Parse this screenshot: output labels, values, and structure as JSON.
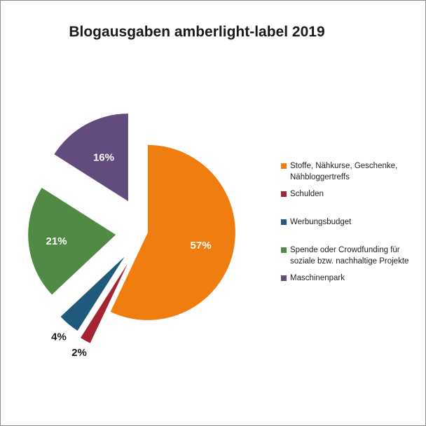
{
  "chart_data": {
    "type": "pie",
    "title": "Blogausgaben amberlight-label 2019",
    "exploded": true,
    "legend_position": "right",
    "slices": [
      {
        "label": "Stoffe, Nähkurse, Geschenke, Nähbloggertreffs",
        "value": 57,
        "value_label": "57%",
        "color": "#ef7d0f"
      },
      {
        "label": "Schulden",
        "value": 2,
        "value_label": "2%",
        "color": "#a42433"
      },
      {
        "label": "Werbungsbudget",
        "value": 4,
        "value_label": "4%",
        "color": "#1f5a7d"
      },
      {
        "label": "Spende oder Crowdfunding für soziale bzw. nachhaltige Projekte",
        "value": 21,
        "value_label": "21%",
        "color": "#508a44"
      },
      {
        "label": "Maschinenpark",
        "value": 16,
        "value_label": "16%",
        "color": "#624c7e"
      }
    ]
  }
}
